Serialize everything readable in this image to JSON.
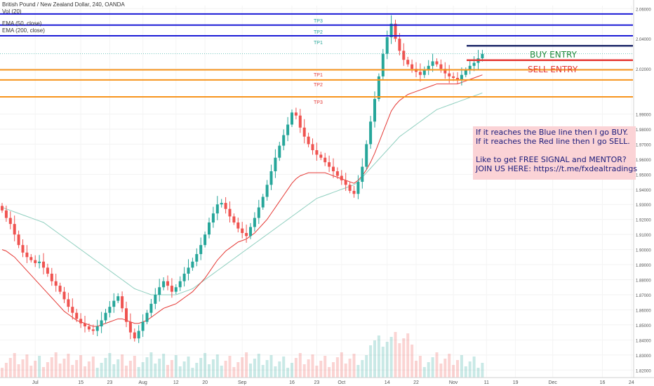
{
  "header": {
    "symbol_line": "British Pound / New Zealand Dollar, 240, OANDA",
    "indicator_vol": "Vol (20)",
    "indicator_ema50": "EMA (50, close)",
    "indicator_ema200": "EMA (200, close)"
  },
  "annotations": {
    "buy_entry": "BUY ENTRY",
    "sell_entry": "SELL ENTRY",
    "buy_tps": [
      "TP3",
      "TP2",
      "TP1"
    ],
    "sell_tps": [
      "TP1",
      "TP2",
      "TP3"
    ],
    "note_lines": [
      "If it reaches the Blue line then I go BUY.",
      "If it reaches the Red line then I go SELL.",
      "",
      "Like to get FREE SIGNAL and MENTOR?",
      "JOIN US HERE: https://t.me/fxdealtradings"
    ]
  },
  "colors": {
    "bull": "#26a69a",
    "bear": "#ef5350",
    "ema50": "#e53935",
    "ema200": "#8fcfbf",
    "buy_line": "#1a1ad6",
    "sell_line": "#f7941d",
    "buy_entry_line": "#1f2a6b",
    "sell_entry_line": "#e53935",
    "current_price": "#26a69a"
  },
  "chart_data": {
    "type": "candlestick",
    "title": "British Pound / New Zealand Dollar, 240, OANDA",
    "ylim": [
      1.815,
      2.062
    ],
    "y_ticks": [
      "2.06000",
      "2.04000",
      "2.02000",
      "1.99000",
      "1.98000",
      "1.97000",
      "1.96000",
      "1.95000",
      "1.94000",
      "1.93000",
      "1.92000",
      "1.91000",
      "1.90000",
      "1.89000",
      "1.88000",
      "1.87000",
      "1.86000",
      "1.85000",
      "1.84000",
      "1.83000",
      "1.82000"
    ],
    "y_tick_values": [
      2.06,
      2.04,
      2.02,
      1.99,
      1.98,
      1.97,
      1.96,
      1.95,
      1.94,
      1.93,
      1.92,
      1.91,
      1.9,
      1.89,
      1.88,
      1.87,
      1.86,
      1.85,
      1.84,
      1.83,
      1.82
    ],
    "x_ticks": [
      {
        "label": "Jul",
        "idx": 8
      },
      {
        "label": "15",
        "idx": 19
      },
      {
        "label": "23",
        "idx": 26
      },
      {
        "label": "Aug",
        "idx": 34
      },
      {
        "label": "12",
        "idx": 42
      },
      {
        "label": "20",
        "idx": 49
      },
      {
        "label": "Sep",
        "idx": 58
      },
      {
        "label": "16",
        "idx": 70
      },
      {
        "label": "23",
        "idx": 76
      },
      {
        "label": "Oct",
        "idx": 82
      },
      {
        "label": "14",
        "idx": 93
      },
      {
        "label": "22",
        "idx": 100
      },
      {
        "label": "Nov",
        "idx": 109
      },
      {
        "label": "11",
        "idx": 117
      },
      {
        "label": "19",
        "idx": 124
      },
      {
        "label": "Dec",
        "idx": 133
      },
      {
        "label": "16",
        "idx": 145
      },
      {
        "label": "24",
        "idx": 152
      }
    ],
    "levels": [
      {
        "name": "buy TP3",
        "value": 2.05646,
        "label": "2.05646",
        "color": "#1a1ad6"
      },
      {
        "name": "buy TP2",
        "value": 2.04905,
        "label": "2.04905",
        "color": "#1a1ad6"
      },
      {
        "name": "buy TP1",
        "value": 2.04194,
        "label": "2.04194",
        "color": "#1a1ad6"
      },
      {
        "name": "buy entry",
        "value": 2.03533,
        "label": "2.03533",
        "color": "#1f2a6b"
      },
      {
        "name": "current",
        "value": 2.03009,
        "label": "2.03009",
        "color": "#26a69a"
      },
      {
        "name": "countdown",
        "value": 2.0275,
        "label": "03:53:55",
        "color": "#26a69a"
      },
      {
        "name": "sell entry",
        "value": 2.02579,
        "label": "2.02579",
        "color": "#e53935"
      },
      {
        "name": "sell TP1",
        "value": 2.01934,
        "label": "2.01934",
        "color": "#f7941d"
      },
      {
        "name": "sell TP2",
        "value": 2.01267,
        "label": "2.01267",
        "color": "#f7941d"
      },
      {
        "name": "sell TP3",
        "value": 2.00143,
        "label": "2.00143",
        "color": "#f7941d"
      }
    ],
    "close": [
      1.926,
      1.921,
      1.917,
      1.91,
      1.903,
      1.898,
      1.895,
      1.893,
      1.891,
      1.892,
      1.888,
      1.884,
      1.879,
      1.876,
      1.872,
      1.867,
      1.862,
      1.858,
      1.854,
      1.851,
      1.849,
      1.847,
      1.846,
      1.849,
      1.853,
      1.858,
      1.862,
      1.866,
      1.869,
      1.861,
      1.852,
      1.845,
      1.841,
      1.846,
      1.852,
      1.858,
      1.864,
      1.87,
      1.875,
      1.879,
      1.876,
      1.872,
      1.875,
      1.879,
      1.884,
      1.888,
      1.892,
      1.897,
      1.903,
      1.91,
      1.918,
      1.924,
      1.93,
      1.931,
      1.927,
      1.922,
      1.918,
      1.914,
      1.911,
      1.909,
      1.915,
      1.921,
      1.928,
      1.935,
      1.943,
      1.952,
      1.961,
      1.969,
      1.976,
      1.983,
      1.991,
      1.989,
      1.981,
      1.975,
      1.97,
      1.966,
      1.963,
      1.961,
      1.958,
      1.955,
      1.952,
      1.949,
      1.946,
      1.943,
      1.939,
      1.937,
      1.945,
      1.955,
      1.97,
      1.985,
      2.0,
      2.015,
      2.03,
      2.041,
      2.05,
      2.04,
      2.032,
      2.026,
      2.023,
      2.02,
      2.018,
      2.016,
      2.019,
      2.022,
      2.025,
      2.023,
      2.02,
      2.017,
      2.015,
      2.014,
      2.013,
      2.016,
      2.019,
      2.022,
      2.024,
      2.027,
      2.03
    ],
    "ema50": [
      1.9,
      1.899,
      1.897,
      1.895,
      1.892,
      1.889,
      1.886,
      1.883,
      1.88,
      1.877,
      1.874,
      1.871,
      1.868,
      1.865,
      1.862,
      1.859,
      1.857,
      1.855,
      1.853,
      1.852,
      1.851,
      1.85,
      1.849,
      1.849,
      1.85,
      1.851,
      1.852,
      1.853,
      1.854,
      1.854,
      1.853,
      1.852,
      1.851,
      1.851,
      1.852,
      1.853,
      1.855,
      1.857,
      1.859,
      1.861,
      1.862,
      1.863,
      1.864,
      1.866,
      1.868,
      1.87,
      1.872,
      1.875,
      1.878,
      1.881,
      1.885,
      1.889,
      1.893,
      1.896,
      1.899,
      1.901,
      1.903,
      1.905,
      1.906,
      1.907,
      1.909,
      1.911,
      1.914,
      1.917,
      1.92,
      1.924,
      1.928,
      1.932,
      1.936,
      1.94,
      1.944,
      1.947,
      1.949,
      1.95,
      1.951,
      1.951,
      1.951,
      1.951,
      1.951,
      1.95,
      1.949,
      1.948,
      1.947,
      1.946,
      1.945,
      1.944,
      1.946,
      1.949,
      1.953,
      1.958,
      1.964,
      1.971,
      1.978,
      1.985,
      1.992,
      1.996,
      1.999,
      2.001,
      2.003,
      2.004,
      2.005,
      2.006,
      2.007,
      2.008,
      2.009,
      2.01,
      2.01,
      2.01,
      2.01,
      2.01,
      2.01,
      2.011,
      2.012,
      2.013,
      2.014,
      2.015,
      2.016
    ],
    "ema200": [
      1.928,
      1.927,
      1.926,
      1.925,
      1.924,
      1.923,
      1.922,
      1.921,
      1.92,
      1.919,
      1.918,
      1.916,
      1.914,
      1.912,
      1.91,
      1.908,
      1.906,
      1.904,
      1.902,
      1.9,
      1.898,
      1.896,
      1.894,
      1.892,
      1.89,
      1.888,
      1.886,
      1.884,
      1.882,
      1.88,
      1.878,
      1.876,
      1.874,
      1.873,
      1.872,
      1.871,
      1.87,
      1.87,
      1.87,
      1.87,
      1.87,
      1.87,
      1.87,
      1.871,
      1.872,
      1.873,
      1.874,
      1.876,
      1.878,
      1.88,
      1.882,
      1.884,
      1.886,
      1.888,
      1.89,
      1.892,
      1.894,
      1.896,
      1.898,
      1.9,
      1.902,
      1.904,
      1.906,
      1.908,
      1.91,
      1.912,
      1.914,
      1.916,
      1.918,
      1.92,
      1.922,
      1.924,
      1.926,
      1.928,
      1.93,
      1.932,
      1.934,
      1.935,
      1.936,
      1.937,
      1.938,
      1.939,
      1.94,
      1.941,
      1.942,
      1.943,
      1.945,
      1.948,
      1.951,
      1.954,
      1.957,
      1.96,
      1.963,
      1.966,
      1.969,
      1.972,
      1.975,
      1.977,
      1.979,
      1.981,
      1.983,
      1.985,
      1.987,
      1.989,
      1.991,
      1.993,
      1.994,
      1.995,
      1.996,
      1.997,
      1.998,
      1.999,
      2.0,
      2.001,
      2.002,
      2.003,
      2.004
    ]
  }
}
